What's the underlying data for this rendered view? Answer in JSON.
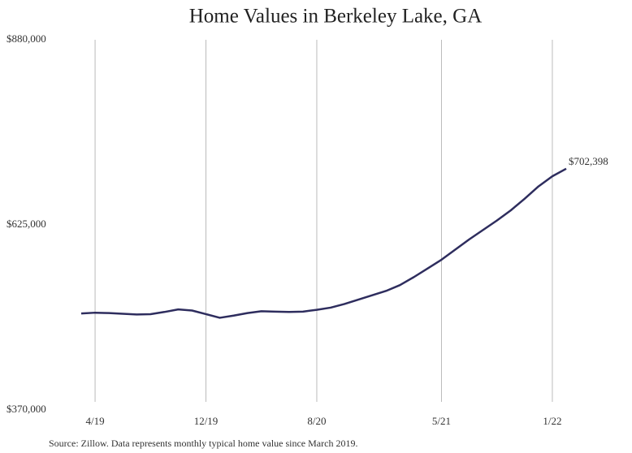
{
  "chart_data": {
    "type": "line",
    "title": "Home Values in Berkeley Lake, GA",
    "caption": "Source: Zillow. Data represents monthly typical home value since March 2019.",
    "categories": [
      null,
      "4/19",
      null,
      null,
      null,
      null,
      null,
      null,
      null,
      "12/19",
      null,
      null,
      null,
      null,
      null,
      null,
      null,
      "8/20",
      null,
      null,
      null,
      null,
      null,
      null,
      null,
      null,
      "5/21",
      null,
      null,
      null,
      null,
      null,
      null,
      null,
      "1/22",
      null
    ],
    "series": [
      {
        "name": "Home value",
        "color": "#2e2d5e",
        "values": [
          503000,
          504000,
          503500,
          502500,
          501500,
          502000,
          505000,
          508500,
          507000,
          502000,
          497000,
          500000,
          503500,
          506000,
          505500,
          505000,
          505500,
          508000,
          511000,
          516000,
          522000,
          528000,
          534000,
          542000,
          553000,
          565000,
          577000,
          591000,
          605000,
          618000,
          631000,
          645000,
          661000,
          678000,
          692000,
          702398
        ],
        "value_labels": [
          null,
          null,
          null,
          null,
          null,
          null,
          null,
          null,
          null,
          null,
          null,
          null,
          null,
          null,
          null,
          null,
          null,
          null,
          null,
          null,
          null,
          null,
          null,
          null,
          null,
          null,
          null,
          null,
          null,
          null,
          null,
          null,
          null,
          null,
          null,
          "$702,398"
        ]
      }
    ],
    "ylim": [
      370000,
      880000
    ],
    "yticks": [
      {
        "value": 370000,
        "label": "$370,000"
      },
      {
        "value": 625000,
        "label": "$625,000"
      },
      {
        "value": 880000,
        "label": "$880,000"
      }
    ],
    "grid": "x"
  }
}
